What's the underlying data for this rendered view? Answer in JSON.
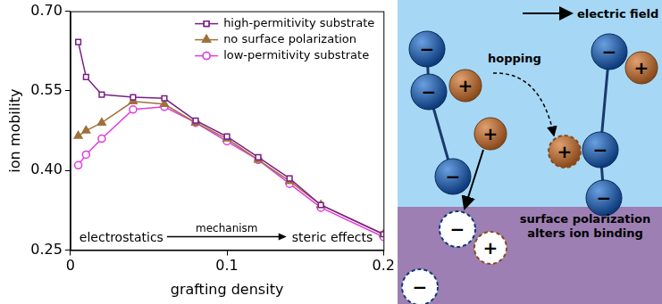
{
  "chart_data": {
    "type": "line",
    "x_label": "grafting density",
    "y_label": "ion mobility",
    "x": [
      0.005,
      0.01,
      0.02,
      0.04,
      0.06,
      0.08,
      0.1,
      0.12,
      0.14,
      0.16,
      0.2
    ],
    "series": [
      {
        "name": "high-permitivity substrate",
        "color": "#7a1f86",
        "marker": "open square",
        "line_style": "solid",
        "values": [
          0.642,
          0.576,
          0.543,
          0.538,
          0.536,
          0.494,
          0.464,
          0.425,
          0.385,
          0.335,
          0.28
        ]
      },
      {
        "name": "no surface polarization",
        "color": "#a0703a",
        "marker": "triangle",
        "line_style": "solid",
        "values": [
          0.465,
          0.475,
          0.49,
          0.53,
          0.525,
          0.49,
          0.46,
          0.42,
          0.38,
          0.335,
          0.28
        ]
      },
      {
        "name": "low-permitivity substrate",
        "color": "#e03ce0",
        "marker": "open circle",
        "line_style": "solid",
        "values": [
          0.41,
          0.43,
          0.46,
          0.515,
          0.52,
          0.49,
          0.455,
          0.42,
          0.375,
          0.33,
          0.275
        ]
      }
    ],
    "xlim": [
      0,
      0.2
    ],
    "xticks": [
      0,
      0.1,
      0.2
    ],
    "ylim": [
      0.25,
      0.7
    ],
    "yticks": [
      0.25,
      {
        "value": 0.4,
        "label": "0.40"
      },
      0.55,
      {
        "value": 0.7,
        "label": "0.70"
      }
    ],
    "grid": false,
    "legend": "upper right",
    "annotations": [
      "electrostatics",
      "mechanism",
      "steric effects"
    ]
  },
  "diagram": {
    "field_label": "electric field",
    "hop_label": "hopping",
    "surface_note": [
      "surface polarization",
      "alters ion binding"
    ],
    "ions": [
      "−",
      "−",
      "−",
      "+",
      "+",
      "+",
      "−",
      "−",
      "−",
      "+",
      "−",
      "+",
      "−"
    ]
  }
}
